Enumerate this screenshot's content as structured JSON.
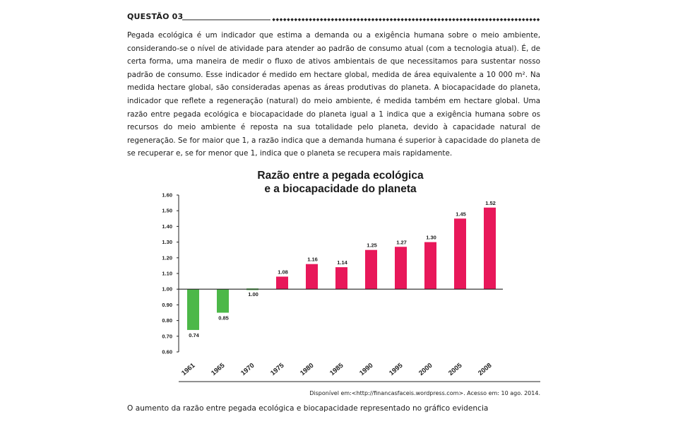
{
  "question": {
    "label": "QUESTÃO 03",
    "paragraph": "Pegada ecológica é um indicador que estima a demanda ou a exigência humana sobre o meio ambiente, considerando-se o nível de atividade para atender ao padrão de consumo atual (com a tecnologia atual). É, de certa forma, uma maneira de medir o fluxo de ativos ambientais de que necessitamos para sustentar nosso padrão de consumo. Esse indicador é medido em hectare global, medida de área equivalente a 10 000 m². Na medida hectare global, são consideradas apenas as áreas produtivas do planeta. A biocapacidade do planeta, indicador que reflete a regeneração (natural) do meio ambiente, é medida também em hectare global. Uma razão entre pegada ecológica e biocapacidade do planeta igual a 1 indica que a exigência humana sobre os recursos do meio ambiente é reposta na sua totalidade pelo planeta, devido à capacidade natural de regeneração. Se for maior que 1, a razão indica que a demanda humana é superior à capacidade do planeta de se recuperar e, se for menor que 1, indica que o planeta se recupera mais rapidamente.",
    "source": "Disponível em:<http://financasfaceis.wordpress.com>. Acesso em: 10 ago. 2014.",
    "prompt": "O aumento da razão entre pegada ecológica e biocapacidade representado no gráfico evidencia"
  },
  "chart_data": {
    "type": "bar",
    "title_lines": [
      "Razão entre a pegada ecológica",
      "e a biocapacidade do planeta"
    ],
    "categories": [
      "1961",
      "1965",
      "1970",
      "1975",
      "1980",
      "1985",
      "1990",
      "1995",
      "2000",
      "2005",
      "2008"
    ],
    "values": [
      0.74,
      0.85,
      1.0,
      1.08,
      1.16,
      1.14,
      1.25,
      1.27,
      1.3,
      1.45,
      1.52
    ],
    "value_labels": [
      "0.74",
      "0.85",
      "1.00",
      "1.08",
      "1.16",
      "1.14",
      "1.25",
      "1.27",
      "1.30",
      "1.45",
      "1.52"
    ],
    "baseline": 1.0,
    "ylim": [
      0.6,
      1.6
    ],
    "yticks": [
      "0.60",
      "0.70",
      "0.80",
      "0.90",
      "1.00",
      "1.10",
      "1.20",
      "1.30",
      "1.40",
      "1.50",
      "1.60"
    ],
    "colors": {
      "above": "#e8185a",
      "below": "#4cb848"
    },
    "xlabel": "",
    "ylabel": "",
    "grid": false
  }
}
